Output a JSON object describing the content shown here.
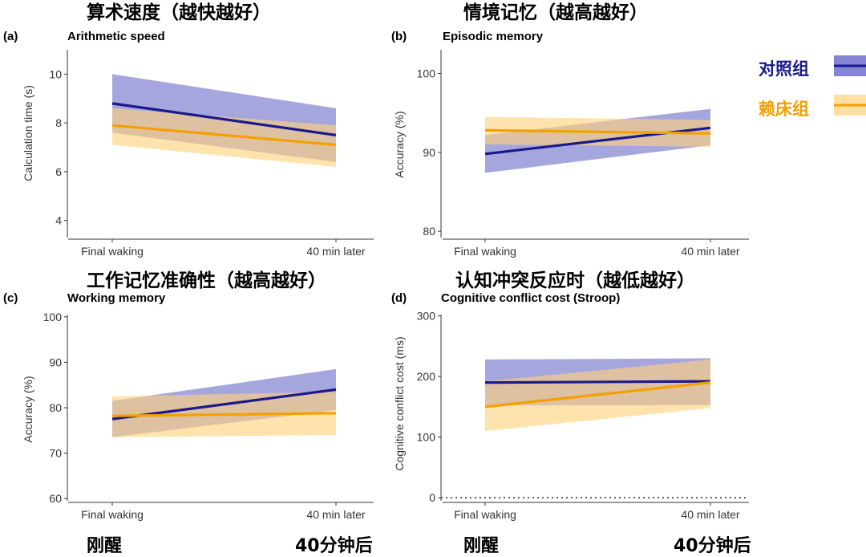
{
  "colors": {
    "control": "#1a1a8a",
    "control_band": "#6f6fcc",
    "snooze": "#f5a000",
    "snooze_band": "#ffd27a",
    "axis": "#333333"
  },
  "legend": {
    "items": [
      {
        "label": "对照组",
        "color": "#1a1a8a",
        "band": "#6f6fcc"
      },
      {
        "label": "赖床组",
        "color": "#f5a000",
        "band": "#ffd27a"
      }
    ]
  },
  "bottom_labels": {
    "left": [
      "刚醒",
      "刚醒"
    ],
    "right": [
      "40分钟后",
      "40分钟后"
    ]
  },
  "chart_data": [
    {
      "type": "line",
      "panel": "(a)",
      "cn_title": "算术速度（越快越好）",
      "title": "Arithmetic speed",
      "ylabel": "Calculation time (s)",
      "categories": [
        "Final waking",
        "40 min later"
      ],
      "ylim": [
        3.3,
        11
      ],
      "yticks": [
        4,
        6,
        8,
        10
      ],
      "series": [
        {
          "name": "对照组",
          "values": [
            8.8,
            7.5
          ],
          "lower": [
            7.6,
            6.4
          ],
          "upper": [
            10.0,
            8.6
          ]
        },
        {
          "name": "赖床组",
          "values": [
            7.9,
            7.1
          ],
          "lower": [
            7.1,
            6.2
          ],
          "upper": [
            8.6,
            7.9
          ]
        }
      ]
    },
    {
      "type": "line",
      "panel": "(b)",
      "cn_title": "情境记忆（越高越好）",
      "title": "Episodic memory",
      "ylabel": "Accuracy (%)",
      "categories": [
        "Final waking",
        "40 min later"
      ],
      "ylim": [
        79.2,
        103
      ],
      "yticks": [
        80,
        90,
        100
      ],
      "series": [
        {
          "name": "对照组",
          "values": [
            89.8,
            93.1
          ],
          "lower": [
            87.4,
            90.9
          ],
          "upper": [
            92.2,
            95.5
          ]
        },
        {
          "name": "赖床组",
          "values": [
            92.8,
            92.4
          ],
          "lower": [
            91.0,
            90.7
          ],
          "upper": [
            94.5,
            94.1
          ]
        }
      ]
    },
    {
      "type": "line",
      "panel": "(c)",
      "cn_title": "工作记忆准确性（越高越好）",
      "title": "Working memory",
      "ylabel": "Accuracy (%)",
      "categories": [
        "Final waking",
        "40 min later"
      ],
      "ylim": [
        59.5,
        100.5
      ],
      "yticks": [
        60,
        70,
        80,
        90,
        100
      ],
      "series": [
        {
          "name": "对照组",
          "values": [
            77.5,
            84.0
          ],
          "lower": [
            73.5,
            79.5
          ],
          "upper": [
            81.5,
            88.5
          ]
        },
        {
          "name": "赖床组",
          "values": [
            78.2,
            78.8
          ],
          "lower": [
            73.5,
            74.0
          ],
          "upper": [
            82.5,
            83.5
          ]
        }
      ]
    },
    {
      "type": "line",
      "panel": "(d)",
      "cn_title": "认知冲突反应时（越低越好）",
      "title": "Cognitive conflict cost (Stroop)",
      "ylabel": "Cognitive conflict cost (ms)",
      "categories": [
        "Final waking",
        "40 min later"
      ],
      "ylim": [
        -5,
        302
      ],
      "yticks": [
        0,
        100,
        200,
        300
      ],
      "reference_line": 0,
      "series": [
        {
          "name": "对照组",
          "values": [
            190,
            192
          ],
          "lower": [
            152,
            153
          ],
          "upper": [
            228,
            230
          ]
        },
        {
          "name": "赖床组",
          "values": [
            150,
            190
          ],
          "lower": [
            110,
            148
          ],
          "upper": [
            192,
            228
          ]
        }
      ]
    }
  ]
}
